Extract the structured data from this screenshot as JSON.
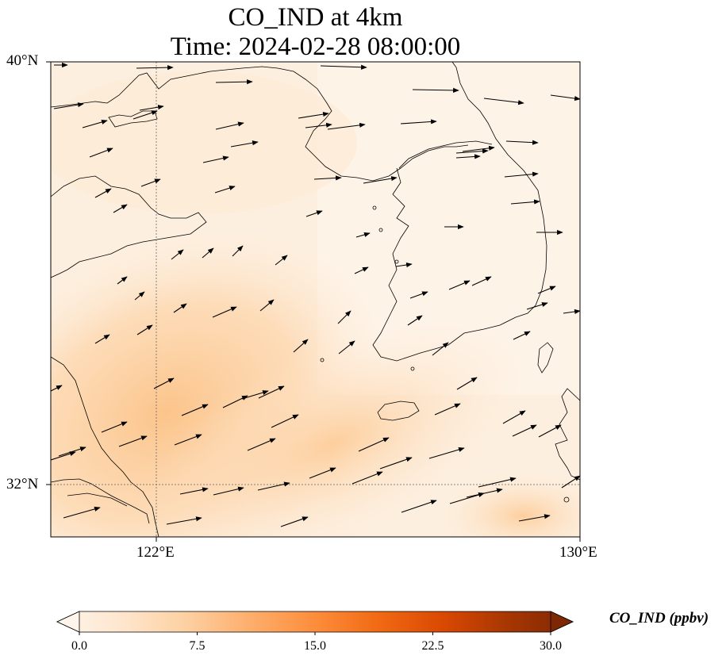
{
  "title": {
    "line1": "CO_IND at 4km",
    "line2": "Time: 2024-02-28 08:00:00"
  },
  "axes": {
    "lat_ticks": [
      "40°N",
      "32°N"
    ],
    "lon_ticks": [
      "122°E",
      "130°E"
    ]
  },
  "colorbar": {
    "label": "CO_IND (ppbv)",
    "ticks": [
      "0.0",
      "7.5",
      "15.0",
      "22.5",
      "30.0"
    ],
    "min": 0,
    "max": 30,
    "extend": "both",
    "colormap": [
      "#fff5eb",
      "#fee6ce",
      "#fdd0a2",
      "#fdae6b",
      "#fd8d3c",
      "#f16913",
      "#d94801",
      "#a63603",
      "#7f2704"
    ]
  },
  "map": {
    "extent_lon": [
      120,
      130
    ],
    "extent_lat": [
      31,
      40
    ],
    "gridlines": {
      "lon": [
        122
      ],
      "lat": [
        32
      ]
    },
    "field_range_ppbv": [
      0,
      9
    ],
    "land_color": "#000000"
  }
}
